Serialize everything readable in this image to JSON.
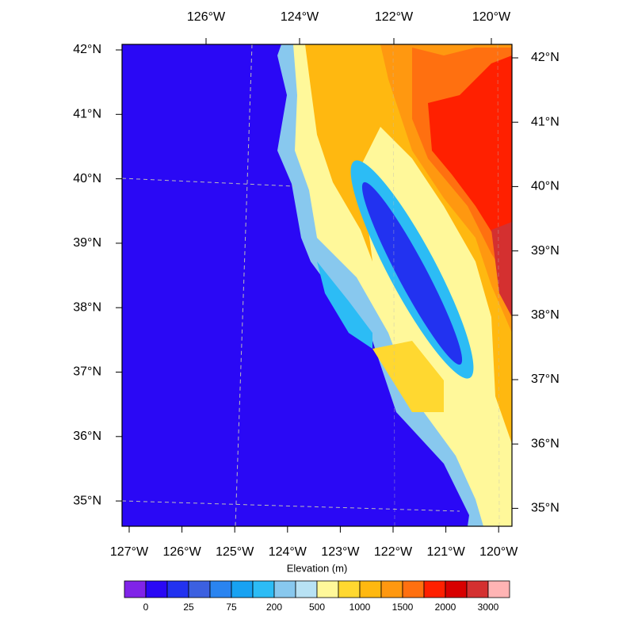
{
  "map": {
    "top_labels": [
      "126°W",
      "124°W",
      "122°W",
      "120°W"
    ],
    "bottom_labels": [
      "127°W",
      "126°W",
      "125°W",
      "124°W",
      "123°W",
      "122°W",
      "121°W",
      "120°W"
    ],
    "left_labels": [
      "42°N",
      "41°N",
      "40°N",
      "39°N",
      "38°N",
      "37°N",
      "36°N",
      "35°N"
    ],
    "right_labels": [
      "42°N",
      "41°N",
      "40°N",
      "39°N",
      "38°N",
      "37°N",
      "36°N",
      "35°N"
    ],
    "colorbar": {
      "title": "Elevation (m)",
      "colors": [
        "#8024e8",
        "#2a08f5",
        "#2232f0",
        "#3c60e0",
        "#2a84f0",
        "#18a2f2",
        "#2cbcf5",
        "#88c8ee",
        "#b8e2f4",
        "#fff89a",
        "#ffd830",
        "#ffb810",
        "#ff9810",
        "#ff7010",
        "#ff2000",
        "#d80000",
        "#d43030",
        "#ffb4b4"
      ],
      "levels": [
        0,
        25,
        75,
        200,
        500,
        1000,
        1500,
        2000,
        3000
      ]
    }
  }
}
